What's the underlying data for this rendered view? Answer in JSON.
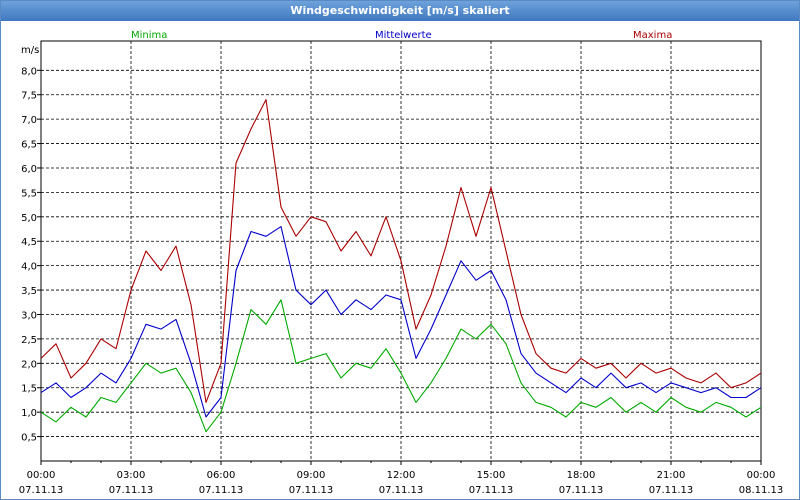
{
  "window": {
    "title": "Windgeschwindigkeit [m/s] skaliert"
  },
  "chart_data": {
    "type": "line",
    "title": "Windgeschwindigkeit [m/s] skaliert",
    "ylabel": "m/s",
    "ylim": [
      0.0,
      8.6
    ],
    "y_ticks": [
      "0,5",
      "1,0",
      "1,5",
      "2,0",
      "2,5",
      "3,0",
      "3,5",
      "4,0",
      "4,5",
      "5,0",
      "5,5",
      "6,0",
      "6,5",
      "7,0",
      "7,5",
      "8,0"
    ],
    "x_ticks": [
      {
        "time": "00:00",
        "date": "07.11.13"
      },
      {
        "time": "03:00",
        "date": "07.11.13"
      },
      {
        "time": "06:00",
        "date": "07.11.13"
      },
      {
        "time": "09:00",
        "date": "07.11.13"
      },
      {
        "time": "12:00",
        "date": "07.11.13"
      },
      {
        "time": "15:00",
        "date": "07.11.13"
      },
      {
        "time": "18:00",
        "date": "07.11.13"
      },
      {
        "time": "21:00",
        "date": "07.11.13"
      },
      {
        "time": "00:00",
        "date": "08.11.13"
      }
    ],
    "grid": true,
    "legend": "top",
    "x_hours": [
      0,
      0.5,
      1,
      1.5,
      2,
      2.5,
      3,
      3.5,
      4,
      4.5,
      5,
      5.5,
      6,
      6.5,
      7,
      7.5,
      8,
      8.5,
      9,
      9.5,
      10,
      10.5,
      11,
      11.5,
      12,
      12.5,
      13,
      13.5,
      14,
      14.5,
      15,
      15.5,
      16,
      16.5,
      17,
      17.5,
      18,
      18.5,
      19,
      19.5,
      20,
      20.5,
      21,
      21.5,
      22,
      22.5,
      23,
      23.5,
      24
    ],
    "series": [
      {
        "name": "Minima",
        "color": "#00aa00",
        "values": [
          1.0,
          0.8,
          1.1,
          0.9,
          1.3,
          1.2,
          1.6,
          2.0,
          1.8,
          1.9,
          1.4,
          0.6,
          1.0,
          2.0,
          3.1,
          2.8,
          3.3,
          2.0,
          2.1,
          2.2,
          1.7,
          2.0,
          1.9,
          2.3,
          1.8,
          1.2,
          1.6,
          2.1,
          2.7,
          2.5,
          2.8,
          2.4,
          1.6,
          1.2,
          1.1,
          0.9,
          1.2,
          1.1,
          1.3,
          1.0,
          1.2,
          1.0,
          1.3,
          1.1,
          1.0,
          1.2,
          1.1,
          0.9,
          1.1
        ]
      },
      {
        "name": "Mittelwerte",
        "color": "#0000cc",
        "values": [
          1.4,
          1.6,
          1.3,
          1.5,
          1.8,
          1.6,
          2.1,
          2.8,
          2.7,
          2.9,
          2.0,
          0.9,
          1.3,
          3.9,
          4.7,
          4.6,
          4.8,
          3.5,
          3.2,
          3.5,
          3.0,
          3.3,
          3.1,
          3.4,
          3.3,
          2.1,
          2.7,
          3.4,
          4.1,
          3.7,
          3.9,
          3.3,
          2.2,
          1.8,
          1.6,
          1.4,
          1.7,
          1.5,
          1.8,
          1.5,
          1.6,
          1.4,
          1.6,
          1.5,
          1.4,
          1.5,
          1.3,
          1.3,
          1.5
        ]
      },
      {
        "name": "Maxima",
        "color": "#aa0000",
        "values": [
          2.1,
          2.4,
          1.7,
          2.0,
          2.5,
          2.3,
          3.5,
          4.3,
          3.9,
          4.4,
          3.2,
          1.2,
          2.0,
          6.1,
          6.8,
          7.4,
          5.2,
          4.6,
          5.0,
          4.9,
          4.3,
          4.7,
          4.2,
          5.0,
          4.1,
          2.7,
          3.4,
          4.4,
          5.6,
          4.6,
          5.6,
          4.3,
          3.0,
          2.2,
          1.9,
          1.8,
          2.1,
          1.9,
          2.0,
          1.7,
          2.0,
          1.8,
          1.9,
          1.7,
          1.6,
          1.8,
          1.5,
          1.6,
          1.8
        ]
      }
    ]
  }
}
